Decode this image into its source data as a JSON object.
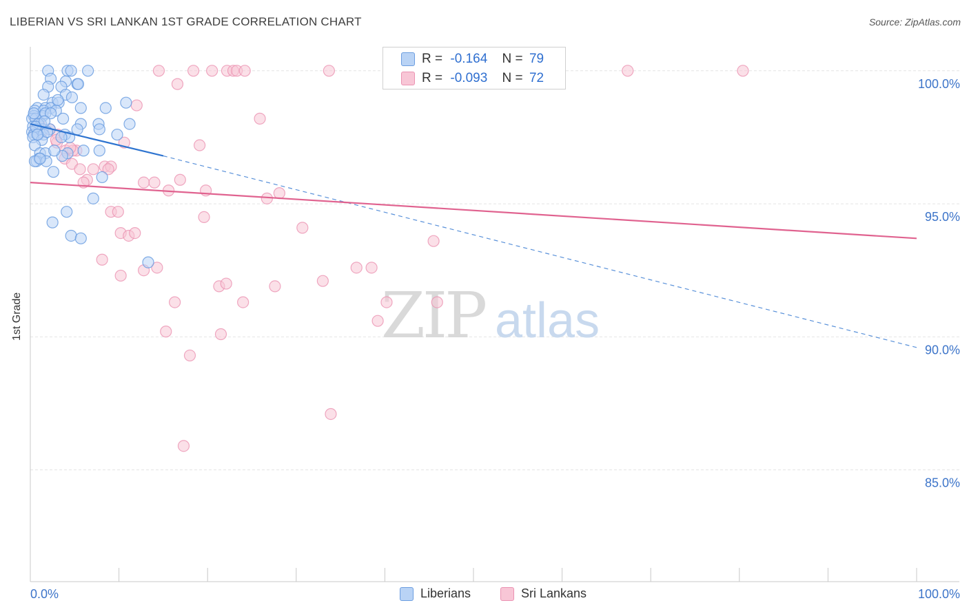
{
  "header": {
    "title": "LIBERIAN VS SRI LANKAN 1ST GRADE CORRELATION CHART",
    "source": "Source: ZipAtlas.com"
  },
  "watermark": {
    "zip": "ZIP",
    "atlas": "atlas"
  },
  "stats": {
    "liberians": {
      "r_label": "R =",
      "r_value": "-0.164",
      "n_label": "N =",
      "n_value": "79"
    },
    "sri_lankans": {
      "r_label": "R =",
      "r_value": "-0.093",
      "n_label": "N =",
      "n_value": "72"
    }
  },
  "colors": {
    "blue_fill": "#b9d3f5",
    "blue_stroke": "#6b9de0",
    "blue_line": "#2e74d0",
    "pink_fill": "#f8c6d6",
    "pink_stroke": "#eb92b2",
    "pink_line": "#e0628f",
    "tick_label": "#3c74c9"
  },
  "chart_data": {
    "type": "scatter",
    "title": "LIBERIAN VS SRI LANKAN 1ST GRADE CORRELATION CHART",
    "xlabel": "",
    "ylabel": "1st Grade",
    "xlim": [
      0,
      100
    ],
    "ylim": [
      80.8,
      100.9
    ],
    "x_tick_labels": [
      "0.0%",
      "100.0%"
    ],
    "y_ticks": [
      100,
      95,
      90,
      85
    ],
    "y_tick_labels": [
      "100.0%",
      "95.0%",
      "90.0%",
      "85.0%"
    ],
    "legend": [
      "Liberians",
      "Sri Lankans"
    ],
    "series": [
      {
        "name": "Liberians",
        "trend": {
          "x": [
            0,
            15,
            100
          ],
          "y": [
            98.0,
            96.8,
            89.6
          ],
          "solid_until": 15
        },
        "points": [
          [
            2.0,
            100.0
          ],
          [
            4.2,
            100.0
          ],
          [
            4.6,
            100.0
          ],
          [
            6.5,
            100.0
          ],
          [
            2.3,
            99.7
          ],
          [
            4.0,
            99.6
          ],
          [
            2.0,
            99.4
          ],
          [
            5.3,
            99.5
          ],
          [
            5.4,
            99.5
          ],
          [
            3.5,
            99.4
          ],
          [
            1.5,
            99.1
          ],
          [
            4.0,
            99.1
          ],
          [
            4.7,
            99.0
          ],
          [
            2.5,
            98.8
          ],
          [
            3.2,
            98.8
          ],
          [
            0.8,
            98.6
          ],
          [
            1.7,
            98.6
          ],
          [
            2.3,
            98.6
          ],
          [
            0.5,
            98.5
          ],
          [
            1.5,
            98.5
          ],
          [
            2.9,
            98.5
          ],
          [
            5.7,
            98.6
          ],
          [
            8.5,
            98.6
          ],
          [
            10.8,
            98.8
          ],
          [
            0.4,
            98.3
          ],
          [
            1.4,
            98.3
          ],
          [
            3.7,
            98.2
          ],
          [
            0.2,
            98.2
          ],
          [
            0.6,
            98.2
          ],
          [
            1.2,
            98.0
          ],
          [
            0.9,
            98.0
          ],
          [
            5.7,
            98.0
          ],
          [
            7.7,
            98.0
          ],
          [
            11.2,
            98.0
          ],
          [
            0.3,
            97.9
          ],
          [
            0.7,
            97.8
          ],
          [
            1.4,
            97.8
          ],
          [
            2.2,
            97.8
          ],
          [
            5.3,
            97.8
          ],
          [
            7.8,
            97.8
          ],
          [
            0.2,
            97.7
          ],
          [
            0.4,
            97.6
          ],
          [
            0.9,
            97.6
          ],
          [
            1.5,
            97.6
          ],
          [
            3.9,
            97.6
          ],
          [
            4.4,
            97.5
          ],
          [
            3.5,
            97.5
          ],
          [
            0.3,
            97.5
          ],
          [
            1.3,
            97.4
          ],
          [
            9.8,
            97.6
          ],
          [
            0.5,
            97.2
          ],
          [
            7.8,
            97.0
          ],
          [
            1.1,
            96.9
          ],
          [
            1.7,
            96.9
          ],
          [
            4.2,
            96.9
          ],
          [
            3.6,
            96.8
          ],
          [
            1.0,
            96.7
          ],
          [
            0.7,
            96.6
          ],
          [
            0.5,
            96.6
          ],
          [
            1.8,
            96.6
          ],
          [
            2.6,
            96.2
          ],
          [
            8.1,
            96.0
          ],
          [
            7.1,
            95.2
          ],
          [
            4.1,
            94.7
          ],
          [
            2.5,
            94.3
          ],
          [
            4.6,
            93.8
          ],
          [
            5.7,
            93.7
          ],
          [
            13.3,
            92.8
          ],
          [
            1.7,
            98.4
          ],
          [
            0.6,
            97.9
          ],
          [
            2.7,
            97.0
          ],
          [
            1.9,
            97.7
          ],
          [
            3.1,
            98.9
          ],
          [
            2.3,
            98.4
          ],
          [
            0.8,
            97.6
          ],
          [
            1.1,
            96.7
          ],
          [
            6.0,
            97.0
          ],
          [
            0.4,
            98.4
          ],
          [
            1.6,
            98.1
          ]
        ]
      },
      {
        "name": "Sri Lankans",
        "trend": {
          "x": [
            0,
            100
          ],
          "y": [
            95.8,
            93.7
          ]
        },
        "points": [
          [
            14.5,
            100.0
          ],
          [
            18.4,
            100.0
          ],
          [
            20.5,
            100.0
          ],
          [
            22.2,
            100.0
          ],
          [
            22.9,
            100.0
          ],
          [
            23.3,
            100.0
          ],
          [
            24.2,
            100.0
          ],
          [
            33.7,
            100.0
          ],
          [
            41.2,
            100.0
          ],
          [
            67.4,
            100.0
          ],
          [
            80.4,
            100.0
          ],
          [
            16.6,
            99.5
          ],
          [
            12.0,
            98.7
          ],
          [
            25.9,
            98.2
          ],
          [
            0.8,
            98.0
          ],
          [
            2.2,
            97.8
          ],
          [
            3.1,
            97.6
          ],
          [
            10.6,
            97.3
          ],
          [
            19.1,
            97.2
          ],
          [
            4.0,
            97.0
          ],
          [
            5.2,
            97.0
          ],
          [
            4.8,
            97.0
          ],
          [
            1.0,
            98.0
          ],
          [
            3.0,
            97.3
          ],
          [
            3.9,
            96.7
          ],
          [
            4.7,
            96.5
          ],
          [
            5.6,
            96.3
          ],
          [
            7.1,
            96.3
          ],
          [
            8.4,
            96.4
          ],
          [
            9.1,
            96.4
          ],
          [
            8.8,
            96.3
          ],
          [
            6.4,
            95.9
          ],
          [
            6.0,
            95.8
          ],
          [
            12.8,
            95.8
          ],
          [
            14.0,
            95.8
          ],
          [
            16.9,
            95.9
          ],
          [
            15.6,
            95.5
          ],
          [
            19.8,
            95.5
          ],
          [
            26.7,
            95.2
          ],
          [
            28.1,
            95.4
          ],
          [
            9.1,
            94.7
          ],
          [
            9.9,
            94.7
          ],
          [
            19.6,
            94.5
          ],
          [
            30.7,
            94.1
          ],
          [
            10.2,
            93.9
          ],
          [
            11.1,
            93.8
          ],
          [
            11.8,
            93.9
          ],
          [
            45.5,
            93.6
          ],
          [
            8.1,
            92.9
          ],
          [
            14.3,
            92.6
          ],
          [
            12.8,
            92.5
          ],
          [
            36.8,
            92.6
          ],
          [
            38.5,
            92.6
          ],
          [
            10.2,
            92.3
          ],
          [
            33.0,
            92.1
          ],
          [
            21.3,
            91.9
          ],
          [
            22.1,
            92.0
          ],
          [
            27.6,
            91.9
          ],
          [
            16.3,
            91.3
          ],
          [
            24.0,
            91.3
          ],
          [
            40.2,
            91.3
          ],
          [
            45.9,
            91.3
          ],
          [
            39.2,
            90.6
          ],
          [
            15.3,
            90.2
          ],
          [
            21.5,
            90.1
          ],
          [
            18.0,
            89.3
          ],
          [
            33.9,
            87.1
          ],
          [
            17.3,
            85.9
          ],
          [
            1.3,
            97.7
          ],
          [
            2.9,
            97.4
          ],
          [
            0.6,
            97.8
          ],
          [
            4.5,
            97.1
          ]
        ]
      }
    ]
  },
  "legend_bottom": {
    "liberians": "Liberians",
    "sri_lankans": "Sri Lankans"
  }
}
